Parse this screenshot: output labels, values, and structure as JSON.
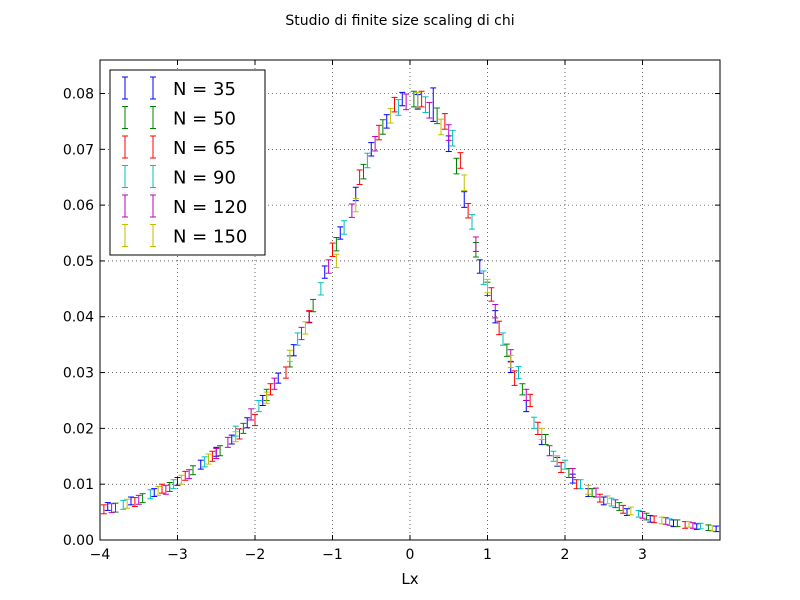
{
  "chart_data": {
    "type": "scatter",
    "title": "Studio di finite size scaling di chi",
    "xlabel": "Lx",
    "ylabel": "",
    "xlim": [
      -4,
      4
    ],
    "ylim": [
      0,
      0.086
    ],
    "x_ticks": [
      -4,
      -3,
      -2,
      -1,
      0,
      1,
      2,
      3
    ],
    "x_tick_labels": [
      "−4",
      "−3",
      "−2",
      "−1",
      "0",
      "1",
      "2",
      "3"
    ],
    "y_ticks": [
      0,
      0.01,
      0.02,
      0.03,
      0.04,
      0.05,
      0.06,
      0.07,
      0.08
    ],
    "y_tick_labels": [
      "0.00",
      "0.01",
      "0.02",
      "0.03",
      "0.04",
      "0.05",
      "0.06",
      "0.07",
      "0.08"
    ],
    "grid": true,
    "legend_position": "top-left",
    "series": [
      {
        "name": "N = 35",
        "color": "#0000ff",
        "points": [
          [
            -3.9,
            0.006,
            0.0007
          ],
          [
            -3.6,
            0.007,
            0.0007
          ],
          [
            -3.3,
            0.0085,
            0.0007
          ],
          [
            -3.0,
            0.0105,
            0.0007
          ],
          [
            -2.7,
            0.0135,
            0.0008
          ],
          [
            -2.5,
            0.0158,
            0.0008
          ],
          [
            -2.3,
            0.018,
            0.0008
          ],
          [
            -2.1,
            0.021,
            0.0009
          ],
          [
            -1.9,
            0.025,
            0.0009
          ],
          [
            -1.7,
            0.029,
            0.0009
          ],
          [
            -1.5,
            0.034,
            0.001
          ],
          [
            -1.3,
            0.04,
            0.001
          ],
          [
            -1.1,
            0.048,
            0.0011
          ],
          [
            -0.9,
            0.055,
            0.0011
          ],
          [
            -0.7,
            0.062,
            0.0012
          ],
          [
            -0.5,
            0.07,
            0.0012
          ],
          [
            -0.3,
            0.075,
            0.0012
          ],
          [
            -0.1,
            0.079,
            0.0012
          ],
          [
            0.1,
            0.0785,
            0.0013
          ],
          [
            0.3,
            0.078,
            0.003
          ],
          [
            0.5,
            0.071,
            0.0014
          ],
          [
            0.7,
            0.061,
            0.0014
          ],
          [
            0.9,
            0.049,
            0.0012
          ],
          [
            1.1,
            0.04,
            0.0011
          ],
          [
            1.3,
            0.031,
            0.001
          ],
          [
            1.5,
            0.024,
            0.001
          ],
          [
            1.7,
            0.018,
            0.0009
          ],
          [
            1.9,
            0.014,
            0.0008
          ],
          [
            2.1,
            0.011,
            0.0008
          ],
          [
            2.3,
            0.0085,
            0.0007
          ],
          [
            2.5,
            0.007,
            0.0007
          ],
          [
            2.8,
            0.005,
            0.0006
          ],
          [
            3.1,
            0.0038,
            0.0006
          ],
          [
            3.4,
            0.003,
            0.0006
          ],
          [
            3.7,
            0.0024,
            0.0005
          ],
          [
            3.95,
            0.002,
            0.0005
          ]
        ]
      },
      {
        "name": "N = 50",
        "color": "#008000",
        "points": [
          [
            -3.8,
            0.0058,
            0.0008
          ],
          [
            -3.45,
            0.0075,
            0.0008
          ],
          [
            -3.1,
            0.0095,
            0.0008
          ],
          [
            -2.8,
            0.0125,
            0.0008
          ],
          [
            -2.45,
            0.016,
            0.0009
          ],
          [
            -2.15,
            0.02,
            0.0009
          ],
          [
            -1.85,
            0.026,
            0.001
          ],
          [
            -1.55,
            0.032,
            0.001
          ],
          [
            -1.25,
            0.042,
            0.0011
          ],
          [
            -0.95,
            0.053,
            0.0012
          ],
          [
            -0.6,
            0.066,
            0.0013
          ],
          [
            -0.35,
            0.074,
            0.0013
          ],
          [
            0.05,
            0.079,
            0.0014
          ],
          [
            0.35,
            0.076,
            0.0014
          ],
          [
            0.6,
            0.067,
            0.0014
          ],
          [
            0.85,
            0.052,
            0.0013
          ],
          [
            1.0,
            0.045,
            0.0012
          ],
          [
            1.25,
            0.034,
            0.0011
          ],
          [
            1.45,
            0.027,
            0.001
          ],
          [
            1.75,
            0.018,
            0.0009
          ],
          [
            2.05,
            0.012,
            0.0008
          ],
          [
            2.35,
            0.0085,
            0.0007
          ],
          [
            2.7,
            0.006,
            0.0007
          ],
          [
            3.05,
            0.0042,
            0.0006
          ],
          [
            3.45,
            0.003,
            0.0006
          ],
          [
            3.85,
            0.0022,
            0.0005
          ]
        ]
      },
      {
        "name": "N = 65",
        "color": "#ff0000",
        "points": [
          [
            -3.95,
            0.0055,
            0.0008
          ],
          [
            -3.55,
            0.0068,
            0.0008
          ],
          [
            -3.2,
            0.0092,
            0.0008
          ],
          [
            -2.9,
            0.0115,
            0.0008
          ],
          [
            -2.55,
            0.015,
            0.0009
          ],
          [
            -2.2,
            0.019,
            0.0009
          ],
          [
            -2.0,
            0.0215,
            0.001
          ],
          [
            -1.8,
            0.027,
            0.001
          ],
          [
            -1.6,
            0.03,
            0.001
          ],
          [
            -1.3,
            0.04,
            0.0011
          ],
          [
            -1.0,
            0.052,
            0.0012
          ],
          [
            -0.65,
            0.065,
            0.0013
          ],
          [
            -0.4,
            0.073,
            0.0013
          ],
          [
            -0.2,
            0.078,
            0.0013
          ],
          [
            0.15,
            0.079,
            0.0014
          ],
          [
            0.45,
            0.075,
            0.0014
          ],
          [
            0.65,
            0.068,
            0.0014
          ],
          [
            0.75,
            0.059,
            0.0013
          ],
          [
            1.05,
            0.044,
            0.0012
          ],
          [
            1.15,
            0.038,
            0.0012
          ],
          [
            1.35,
            0.029,
            0.0013
          ],
          [
            1.55,
            0.025,
            0.0011
          ],
          [
            1.65,
            0.02,
            0.0011
          ],
          [
            1.95,
            0.013,
            0.0009
          ],
          [
            2.15,
            0.01,
            0.0008
          ],
          [
            2.45,
            0.0075,
            0.0007
          ],
          [
            2.75,
            0.0055,
            0.0007
          ],
          [
            3.15,
            0.0037,
            0.0006
          ],
          [
            3.55,
            0.0027,
            0.0006
          ]
        ]
      },
      {
        "name": "N = 90",
        "color": "#00bfbf",
        "points": [
          [
            -3.7,
            0.0063,
            0.0008
          ],
          [
            -3.35,
            0.0082,
            0.0008
          ],
          [
            -3.05,
            0.01,
            0.0008
          ],
          [
            -2.65,
            0.014,
            0.0009
          ],
          [
            -2.25,
            0.0195,
            0.0009
          ],
          [
            -1.95,
            0.024,
            0.001
          ],
          [
            -1.45,
            0.036,
            0.0011
          ],
          [
            -1.15,
            0.045,
            0.0011
          ],
          [
            -0.85,
            0.056,
            0.0012
          ],
          [
            -0.55,
            0.068,
            0.0013
          ],
          [
            -0.15,
            0.0775,
            0.0014
          ],
          [
            0.2,
            0.078,
            0.0014
          ],
          [
            0.55,
            0.072,
            0.0014
          ],
          [
            0.8,
            0.057,
            0.0013
          ],
          [
            0.95,
            0.047,
            0.0012
          ],
          [
            1.2,
            0.036,
            0.0011
          ],
          [
            1.4,
            0.03,
            0.0011
          ],
          [
            1.6,
            0.021,
            0.001
          ],
          [
            1.85,
            0.015,
            0.0009
          ],
          [
            2.0,
            0.0135,
            0.0008
          ],
          [
            2.2,
            0.01,
            0.0008
          ],
          [
            2.6,
            0.0068,
            0.0007
          ],
          [
            2.95,
            0.0047,
            0.0006
          ],
          [
            3.35,
            0.0032,
            0.0006
          ],
          [
            3.75,
            0.0025,
            0.0005
          ]
        ]
      },
      {
        "name": "N = 120",
        "color": "#bf00bf",
        "points": [
          [
            -3.85,
            0.0057,
            0.0008
          ],
          [
            -3.5,
            0.0072,
            0.0008
          ],
          [
            -3.15,
            0.009,
            0.0008
          ],
          [
            -2.85,
            0.0118,
            0.0008
          ],
          [
            -2.5,
            0.0155,
            0.0009
          ],
          [
            -2.35,
            0.0175,
            0.0009
          ],
          [
            -2.05,
            0.0225,
            0.001
          ],
          [
            -1.75,
            0.028,
            0.001
          ],
          [
            -1.4,
            0.037,
            0.0011
          ],
          [
            -1.05,
            0.049,
            0.0012
          ],
          [
            -0.75,
            0.059,
            0.0012
          ],
          [
            -0.45,
            0.071,
            0.0013
          ],
          [
            -0.05,
            0.0785,
            0.0014
          ],
          [
            0.25,
            0.077,
            0.0014
          ],
          [
            0.5,
            0.073,
            0.0014
          ],
          [
            0.85,
            0.053,
            0.0013
          ],
          [
            1.1,
            0.041,
            0.0012
          ],
          [
            1.3,
            0.033,
            0.0011
          ],
          [
            1.5,
            0.026,
            0.001
          ],
          [
            1.8,
            0.016,
            0.0009
          ],
          [
            2.1,
            0.012,
            0.0008
          ],
          [
            2.4,
            0.0085,
            0.0008
          ],
          [
            2.65,
            0.0065,
            0.0007
          ],
          [
            3.0,
            0.0045,
            0.0006
          ],
          [
            3.3,
            0.0034,
            0.0006
          ],
          [
            3.65,
            0.0026,
            0.0005
          ]
        ]
      },
      {
        "name": "N = 150",
        "color": "#bfbf00",
        "points": [
          [
            -3.65,
            0.0065,
            0.0008
          ],
          [
            -3.25,
            0.0088,
            0.0008
          ],
          [
            -2.95,
            0.0108,
            0.0008
          ],
          [
            -2.6,
            0.0145,
            0.0009
          ],
          [
            -2.25,
            0.0185,
            0.0009
          ],
          [
            -1.85,
            0.0255,
            0.001
          ],
          [
            -1.55,
            0.033,
            0.001
          ],
          [
            -1.35,
            0.038,
            0.0011
          ],
          [
            -0.95,
            0.05,
            0.0012
          ],
          [
            -0.7,
            0.06,
            0.0012
          ],
          [
            -0.25,
            0.076,
            0.0013
          ],
          [
            0.1,
            0.0788,
            0.0014
          ],
          [
            0.4,
            0.074,
            0.0014
          ],
          [
            0.7,
            0.064,
            0.0014
          ],
          [
            1.0,
            0.0455,
            0.0012
          ],
          [
            1.3,
            0.032,
            0.0011
          ],
          [
            1.7,
            0.019,
            0.001
          ],
          [
            1.9,
            0.0142,
            0.0009
          ],
          [
            2.3,
            0.009,
            0.0008
          ],
          [
            2.55,
            0.0072,
            0.0007
          ],
          [
            2.85,
            0.0052,
            0.0007
          ],
          [
            3.25,
            0.0035,
            0.0006
          ],
          [
            3.6,
            0.0028,
            0.0005
          ],
          [
            3.9,
            0.0021,
            0.0005
          ]
        ]
      }
    ]
  }
}
